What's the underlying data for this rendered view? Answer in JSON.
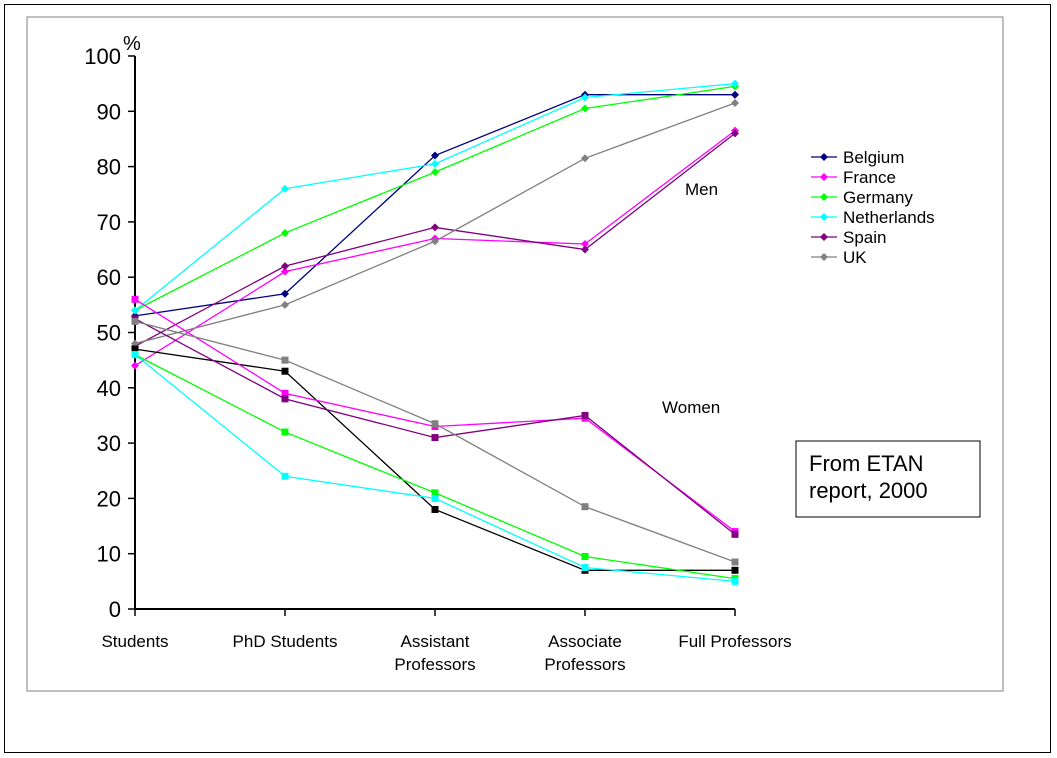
{
  "chart_data": {
    "type": "line",
    "ylabel": "%",
    "ylim": [
      0,
      100
    ],
    "yticks": [
      0,
      10,
      20,
      30,
      40,
      50,
      60,
      70,
      80,
      90,
      100
    ],
    "categories": [
      [
        "Students"
      ],
      [
        "PhD Students"
      ],
      [
        "Assistant",
        "Professors"
      ],
      [
        "Associate",
        "Professors"
      ],
      [
        "Full Professors"
      ]
    ],
    "grid": false,
    "legend_position": "right",
    "annotations": {
      "men": "Men",
      "women": "Women",
      "source": [
        "From ETAN",
        "report, 2000"
      ]
    },
    "men_series": [
      {
        "name": "Belgium",
        "color": "#000080",
        "values": [
          53,
          57,
          82,
          93,
          93
        ]
      },
      {
        "name": "France",
        "color": "#FF00FF",
        "values": [
          44,
          61,
          67,
          66,
          86.5
        ]
      },
      {
        "name": "Germany",
        "color": "#00FF00",
        "values": [
          54,
          68,
          79,
          90.5,
          94.5
        ]
      },
      {
        "name": "Netherlands",
        "color": "#00FFFF",
        "values": [
          54,
          76,
          80.5,
          92.5,
          95
        ]
      },
      {
        "name": "Spain",
        "color": "#800080",
        "values": [
          47.5,
          62,
          69,
          65,
          86
        ]
      },
      {
        "name": "UK",
        "color": "#808080",
        "values": [
          48,
          55,
          66.5,
          81.5,
          91.5
        ]
      }
    ],
    "women_series": [
      {
        "name": "Belgium",
        "color": "#000000",
        "values": [
          47,
          43,
          18,
          7,
          7
        ]
      },
      {
        "name": "France",
        "color": "#FF00FF",
        "values": [
          56,
          39,
          33,
          34.5,
          14
        ]
      },
      {
        "name": "Germany",
        "color": "#00FF00",
        "values": [
          46,
          32,
          21,
          9.5,
          5.5
        ]
      },
      {
        "name": "Netherlands",
        "color": "#00FFFF",
        "values": [
          46,
          24,
          20,
          7.5,
          5
        ]
      },
      {
        "name": "Spain",
        "color": "#800080",
        "values": [
          52.5,
          38,
          31,
          35,
          13.5
        ]
      },
      {
        "name": "UK",
        "color": "#808080",
        "values": [
          52,
          45,
          33.5,
          18.5,
          8.5
        ]
      }
    ]
  }
}
